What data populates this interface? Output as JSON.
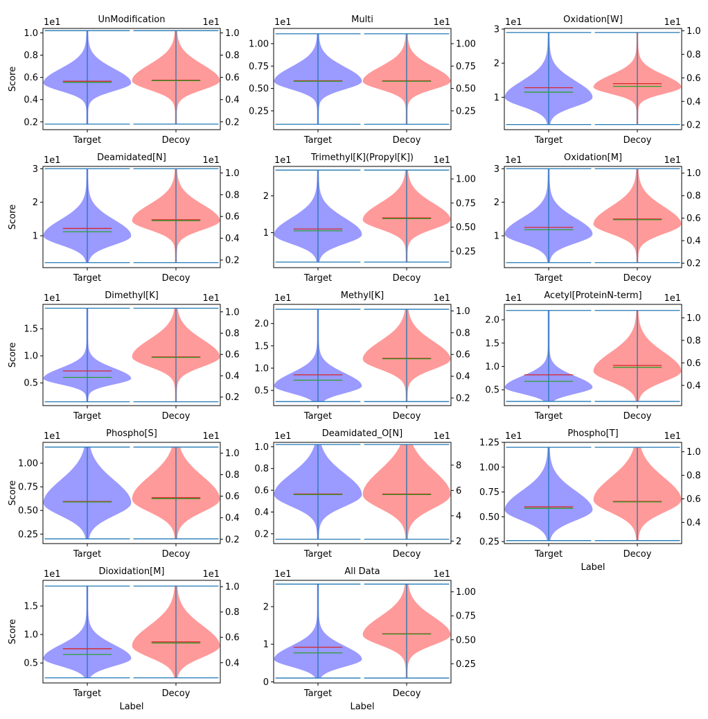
{
  "figure": {
    "ylabel": "Score",
    "xlabel": "Label",
    "multiplier": "1e1"
  },
  "chart_data": [
    {
      "type": "violin",
      "title": "UnModification",
      "categories": [
        "Target",
        "Decoy"
      ],
      "ylim": [
        0.13,
        1.04
      ],
      "yticks": [
        0.2,
        0.4,
        0.6,
        0.8,
        1.0
      ],
      "ytick_labels": [
        "0.2",
        "0.4",
        "0.6",
        "0.8",
        "1.0"
      ],
      "y2lim": [
        0.13,
        1.04
      ],
      "y2ticks": [
        0.2,
        0.4,
        0.6,
        0.8,
        1.0
      ],
      "y2tick_labels": [
        "0.2",
        "0.4",
        "0.6",
        "0.8",
        "1.0"
      ],
      "target": {
        "min": 0.18,
        "max": 1.02,
        "mean": 0.565,
        "median": 0.555,
        "mode": 0.55,
        "spread": 0.08
      },
      "decoy": {
        "min": 0.18,
        "max": 1.02,
        "mean": 0.575,
        "median": 0.57,
        "mode": 0.57,
        "spread": 0.09
      },
      "show_ylabel": true,
      "show_xlabel": false
    },
    {
      "type": "violin",
      "title": "Multi",
      "categories": [
        "Target",
        "Decoy"
      ],
      "ylim": [
        0.04,
        1.17
      ],
      "yticks": [
        0.25,
        0.5,
        0.75,
        1.0
      ],
      "ytick_labels": [
        "0.25",
        "0.50",
        "0.75",
        "1.00"
      ],
      "y2lim": [
        0.04,
        1.17
      ],
      "y2ticks": [
        0.25,
        0.5,
        0.75,
        1.0
      ],
      "y2tick_labels": [
        "0.25",
        "0.50",
        "0.75",
        "1.00"
      ],
      "target": {
        "min": 0.1,
        "max": 1.11,
        "mean": 0.585,
        "median": 0.58,
        "mode": 0.58,
        "spread": 0.1
      },
      "decoy": {
        "min": 0.1,
        "max": 1.11,
        "mean": 0.585,
        "median": 0.58,
        "mode": 0.58,
        "spread": 0.1
      },
      "show_ylabel": false,
      "show_xlabel": false
    },
    {
      "type": "violin",
      "title": "Oxidation[W]",
      "categories": [
        "Target",
        "Decoy"
      ],
      "ylim": [
        0.05,
        3.02
      ],
      "yticks": [
        1,
        2,
        3
      ],
      "ytick_labels": [
        "1",
        "2",
        "3"
      ],
      "y2lim": [
        0.16,
        1.02
      ],
      "y2ticks": [
        0.2,
        0.4,
        0.6,
        0.8,
        1.0
      ],
      "y2tick_labels": [
        "0.2",
        "0.4",
        "0.6",
        "0.8",
        "1.0"
      ],
      "target": {
        "min": 0.2,
        "max": 2.9,
        "mean": 1.28,
        "median": 1.15,
        "mode": 1.0,
        "spread": 0.3
      },
      "decoy": {
        "min": 0.2,
        "max": 2.9,
        "mean": 1.4,
        "median": 1.32,
        "mode": 1.3,
        "spread": 0.22
      },
      "show_ylabel": false,
      "show_xlabel": false
    },
    {
      "type": "violin",
      "title": "Deamidated[N]",
      "categories": [
        "Target",
        "Decoy"
      ],
      "ylim": [
        0.05,
        3.07
      ],
      "yticks": [
        1,
        2,
        3
      ],
      "ytick_labels": [
        "1",
        "2",
        "3"
      ],
      "y2lim": [
        0.13,
        1.06
      ],
      "y2ticks": [
        0.2,
        0.4,
        0.6,
        0.8,
        1.0
      ],
      "y2tick_labels": [
        "0.2",
        "0.4",
        "0.6",
        "0.8",
        "1.0"
      ],
      "target": {
        "min": 0.2,
        "max": 3.0,
        "mean": 1.22,
        "median": 1.12,
        "mode": 1.0,
        "spread": 0.3
      },
      "decoy": {
        "min": 0.2,
        "max": 3.0,
        "mean": 1.48,
        "median": 1.45,
        "mode": 1.45,
        "spread": 0.3
      },
      "show_ylabel": true,
      "show_xlabel": false
    },
    {
      "type": "violin",
      "title": "Trimethyl[K](Propyl[K])",
      "categories": [
        "Target",
        "Decoy"
      ],
      "ylim": [
        0.05,
        2.8
      ],
      "yticks": [
        1,
        2
      ],
      "ytick_labels": [
        "1",
        "2"
      ],
      "y2lim": [
        0.08,
        1.13
      ],
      "y2ticks": [
        0.25,
        0.5,
        0.75,
        1.0
      ],
      "y2tick_labels": [
        "0.25",
        "0.50",
        "0.75",
        "1.00"
      ],
      "target": {
        "min": 0.2,
        "max": 2.7,
        "mean": 1.1,
        "median": 1.05,
        "mode": 0.95,
        "spread": 0.28
      },
      "decoy": {
        "min": 0.2,
        "max": 2.7,
        "mean": 1.4,
        "median": 1.38,
        "mode": 1.35,
        "spread": 0.28
      },
      "show_ylabel": false,
      "show_xlabel": false
    },
    {
      "type": "violin",
      "title": "Oxidation[M]",
      "categories": [
        "Target",
        "Decoy"
      ],
      "ylim": [
        0.05,
        3.07
      ],
      "yticks": [
        1,
        2,
        3
      ],
      "ytick_labels": [
        "1",
        "2",
        "3"
      ],
      "y2lim": [
        0.16,
        1.06
      ],
      "y2ticks": [
        0.2,
        0.4,
        0.6,
        0.8,
        1.0
      ],
      "y2tick_labels": [
        "0.2",
        "0.4",
        "0.6",
        "0.8",
        "1.0"
      ],
      "target": {
        "min": 0.2,
        "max": 3.0,
        "mean": 1.25,
        "median": 1.18,
        "mode": 1.05,
        "spread": 0.3
      },
      "decoy": {
        "min": 0.2,
        "max": 3.0,
        "mean": 1.5,
        "median": 1.48,
        "mode": 1.35,
        "spread": 0.32
      },
      "show_ylabel": false,
      "show_xlabel": false
    },
    {
      "type": "violin",
      "title": "Dimethyl[K]",
      "categories": [
        "Target",
        "Decoy"
      ],
      "ylim": [
        0.08,
        1.95
      ],
      "yticks": [
        0.5,
        1.0,
        1.5
      ],
      "ytick_labels": [
        "0.5",
        "1.0",
        "1.5"
      ],
      "y2lim": [
        0.12,
        1.07
      ],
      "y2ticks": [
        0.2,
        0.4,
        0.6,
        0.8,
        1.0
      ],
      "y2tick_labels": [
        "0.2",
        "0.4",
        "0.6",
        "0.8",
        "1.0"
      ],
      "target": {
        "min": 0.15,
        "max": 1.88,
        "mean": 0.72,
        "median": 0.6,
        "mode": 0.58,
        "spread": 0.12
      },
      "decoy": {
        "min": 0.15,
        "max": 1.88,
        "mean": 0.98,
        "median": 0.97,
        "mode": 0.98,
        "spread": 0.2
      },
      "show_ylabel": true,
      "show_xlabel": false
    },
    {
      "type": "violin",
      "title": "Methyl[K]",
      "categories": [
        "Target",
        "Decoy"
      ],
      "ylim": [
        0.16,
        2.43
      ],
      "yticks": [
        0.5,
        1.0,
        1.5,
        2.0
      ],
      "ytick_labels": [
        "0.5",
        "1.0",
        "1.5",
        "2.0"
      ],
      "y2lim": [
        0.13,
        1.06
      ],
      "y2ticks": [
        0.2,
        0.4,
        0.6,
        0.8,
        1.0
      ],
      "y2tick_labels": [
        "0.2",
        "0.4",
        "0.6",
        "0.8",
        "1.0"
      ],
      "target": {
        "min": 0.25,
        "max": 2.32,
        "mean": 0.85,
        "median": 0.73,
        "mode": 0.6,
        "spread": 0.18
      },
      "decoy": {
        "min": 0.25,
        "max": 2.32,
        "mean": 1.22,
        "median": 1.21,
        "mode": 1.2,
        "spread": 0.25
      },
      "show_ylabel": false,
      "show_xlabel": false
    },
    {
      "type": "violin",
      "title": "Acetyl[ProteinN-term]",
      "categories": [
        "Target",
        "Decoy"
      ],
      "ylim": [
        0.16,
        2.33
      ],
      "yticks": [
        0.5,
        1.0,
        1.5,
        2.0
      ],
      "ytick_labels": [
        "0.5",
        "1.0",
        "1.5",
        "2.0"
      ],
      "y2lim": [
        0.22,
        1.12
      ],
      "y2ticks": [
        0.4,
        0.6,
        0.8,
        1.0
      ],
      "y2tick_labels": [
        "0.4",
        "0.6",
        "0.8",
        "1.0"
      ],
      "target": {
        "min": 0.25,
        "max": 2.2,
        "mean": 0.82,
        "median": 0.68,
        "mode": 0.55,
        "spread": 0.15
      },
      "decoy": {
        "min": 0.25,
        "max": 2.2,
        "mean": 1.02,
        "median": 0.98,
        "mode": 0.9,
        "spread": 0.25
      },
      "show_ylabel": false,
      "show_xlabel": false
    },
    {
      "type": "violin",
      "title": "Phospho[S]",
      "categories": [
        "Target",
        "Decoy"
      ],
      "ylim": [
        0.15,
        1.22
      ],
      "yticks": [
        0.25,
        0.5,
        0.75,
        1.0
      ],
      "ytick_labels": [
        "0.25",
        "0.50",
        "0.75",
        "1.00"
      ],
      "y2lim": [
        0.16,
        1.1
      ],
      "y2ticks": [
        0.2,
        0.4,
        0.6,
        0.8,
        1.0
      ],
      "y2tick_labels": [
        "0.2",
        "0.4",
        "0.6",
        "0.8",
        "1.0"
      ],
      "target": {
        "min": 0.2,
        "max": 1.17,
        "mean": 0.595,
        "median": 0.59,
        "mode": 0.58,
        "spread": 0.15
      },
      "decoy": {
        "min": 0.2,
        "max": 1.17,
        "mean": 0.635,
        "median": 0.625,
        "mode": 0.62,
        "spread": 0.15
      },
      "show_ylabel": true,
      "show_xlabel": false
    },
    {
      "type": "violin",
      "title": "Deamidated_O[N]",
      "categories": [
        "Target",
        "Decoy"
      ],
      "ylim": [
        0.11,
        1.04
      ],
      "yticks": [
        0.2,
        0.4,
        0.6,
        0.8,
        1.0
      ],
      "ytick_labels": [
        "0.2",
        "0.4",
        "0.6",
        "0.8",
        "1.0"
      ],
      "y2lim": [
        1.8,
        9.8
      ],
      "y2ticks": [
        2,
        4,
        6,
        8
      ],
      "y2tick_labels": [
        "2",
        "4",
        "6",
        "8"
      ],
      "target": {
        "min": 0.15,
        "max": 1.02,
        "mean": 0.565,
        "median": 0.56,
        "mode": 0.56,
        "spread": 0.12
      },
      "decoy": {
        "min": 0.15,
        "max": 1.02,
        "mean": 0.565,
        "median": 0.56,
        "mode": 0.56,
        "spread": 0.14
      },
      "show_ylabel": false,
      "show_xlabel": false
    },
    {
      "type": "violin",
      "title": "Phospho[T]",
      "categories": [
        "Target",
        "Decoy"
      ],
      "ylim": [
        0.23,
        1.25
      ],
      "yticks": [
        0.25,
        0.5,
        0.75,
        1.0,
        1.25
      ],
      "ytick_labels": [
        "0.25",
        "0.50",
        "0.75",
        "1.00",
        "1.25"
      ],
      "y2lim": [
        0.22,
        1.08
      ],
      "y2ticks": [
        0.4,
        0.6,
        0.8,
        1.0
      ],
      "y2tick_labels": [
        "0.4",
        "0.6",
        "0.8",
        "1.0"
      ],
      "target": {
        "min": 0.26,
        "max": 1.2,
        "mean": 0.6,
        "median": 0.585,
        "mode": 0.57,
        "spread": 0.12
      },
      "decoy": {
        "min": 0.26,
        "max": 1.2,
        "mean": 0.655,
        "median": 0.65,
        "mode": 0.67,
        "spread": 0.14
      },
      "show_ylabel": false,
      "show_xlabel": true
    },
    {
      "type": "violin",
      "title": "Dioxidation[M]",
      "categories": [
        "Target",
        "Decoy"
      ],
      "ylim": [
        0.15,
        1.95
      ],
      "yticks": [
        0.5,
        1.0,
        1.5
      ],
      "ytick_labels": [
        "0.5",
        "1.0",
        "1.5"
      ],
      "y2lim": [
        0.24,
        1.05
      ],
      "y2ticks": [
        0.4,
        0.6,
        0.8,
        1.0
      ],
      "y2tick_labels": [
        "0.4",
        "0.6",
        "0.8",
        "1.0"
      ],
      "target": {
        "min": 0.24,
        "max": 1.85,
        "mean": 0.75,
        "median": 0.65,
        "mode": 0.58,
        "spread": 0.15
      },
      "decoy": {
        "min": 0.24,
        "max": 1.85,
        "mean": 0.87,
        "median": 0.85,
        "mode": 0.8,
        "spread": 0.22
      },
      "show_ylabel": true,
      "show_xlabel": true
    },
    {
      "type": "violin",
      "title": "All Data",
      "categories": [
        "Target",
        "Decoy"
      ],
      "ylim": [
        -0.03,
        2.7
      ],
      "yticks": [
        0,
        1,
        2
      ],
      "ytick_labels": [
        "0",
        "1",
        "2"
      ],
      "y2lim": [
        0.05,
        1.12
      ],
      "y2ticks": [
        0.25,
        0.5,
        0.75,
        1.0
      ],
      "y2tick_labels": [
        "0.25",
        "0.50",
        "0.75",
        "1.00"
      ],
      "target": {
        "min": 0.1,
        "max": 2.6,
        "mean": 0.92,
        "median": 0.77,
        "mode": 0.6,
        "spread": 0.22
      },
      "decoy": {
        "min": 0.1,
        "max": 2.6,
        "mean": 1.28,
        "median": 1.27,
        "mode": 1.25,
        "spread": 0.3
      },
      "show_ylabel": false,
      "show_xlabel": true
    }
  ],
  "colors": {
    "target_fill": "#8f8fff",
    "decoy_fill": "#ff8f8f",
    "whisker": "#1f77b4",
    "mean_line": "#d62728",
    "median_line": "#2ca02c",
    "axis": "#000000"
  }
}
